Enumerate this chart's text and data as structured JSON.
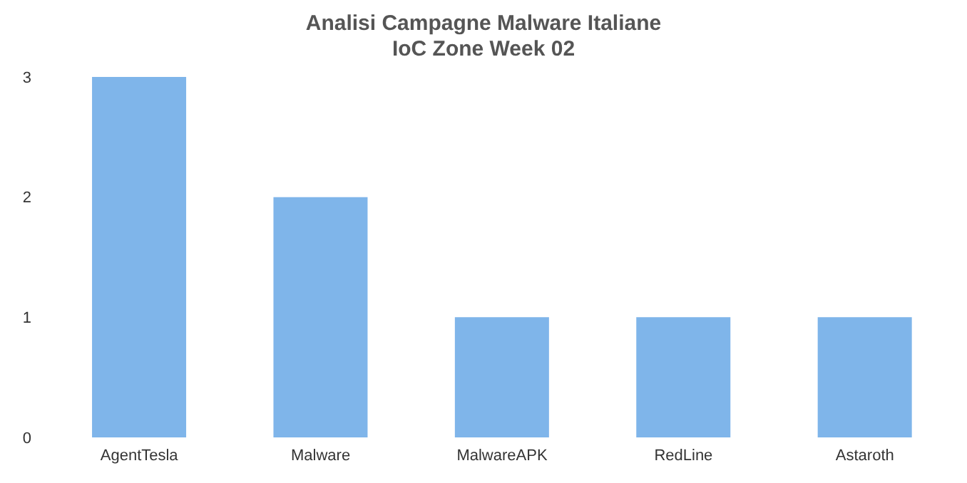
{
  "chart_data": {
    "type": "bar",
    "title": "Analisi Campagne Malware Italiane",
    "subtitle": "IoC Zone Week 02",
    "categories": [
      "AgentTesla",
      "Malware",
      "MalwareAPK",
      "RedLine",
      "Astaroth"
    ],
    "values": [
      3,
      2,
      1,
      1,
      1
    ],
    "color": "#7fb5ea",
    "ylim": [
      0,
      3
    ],
    "yticks": [
      0,
      1,
      2,
      3
    ]
  }
}
